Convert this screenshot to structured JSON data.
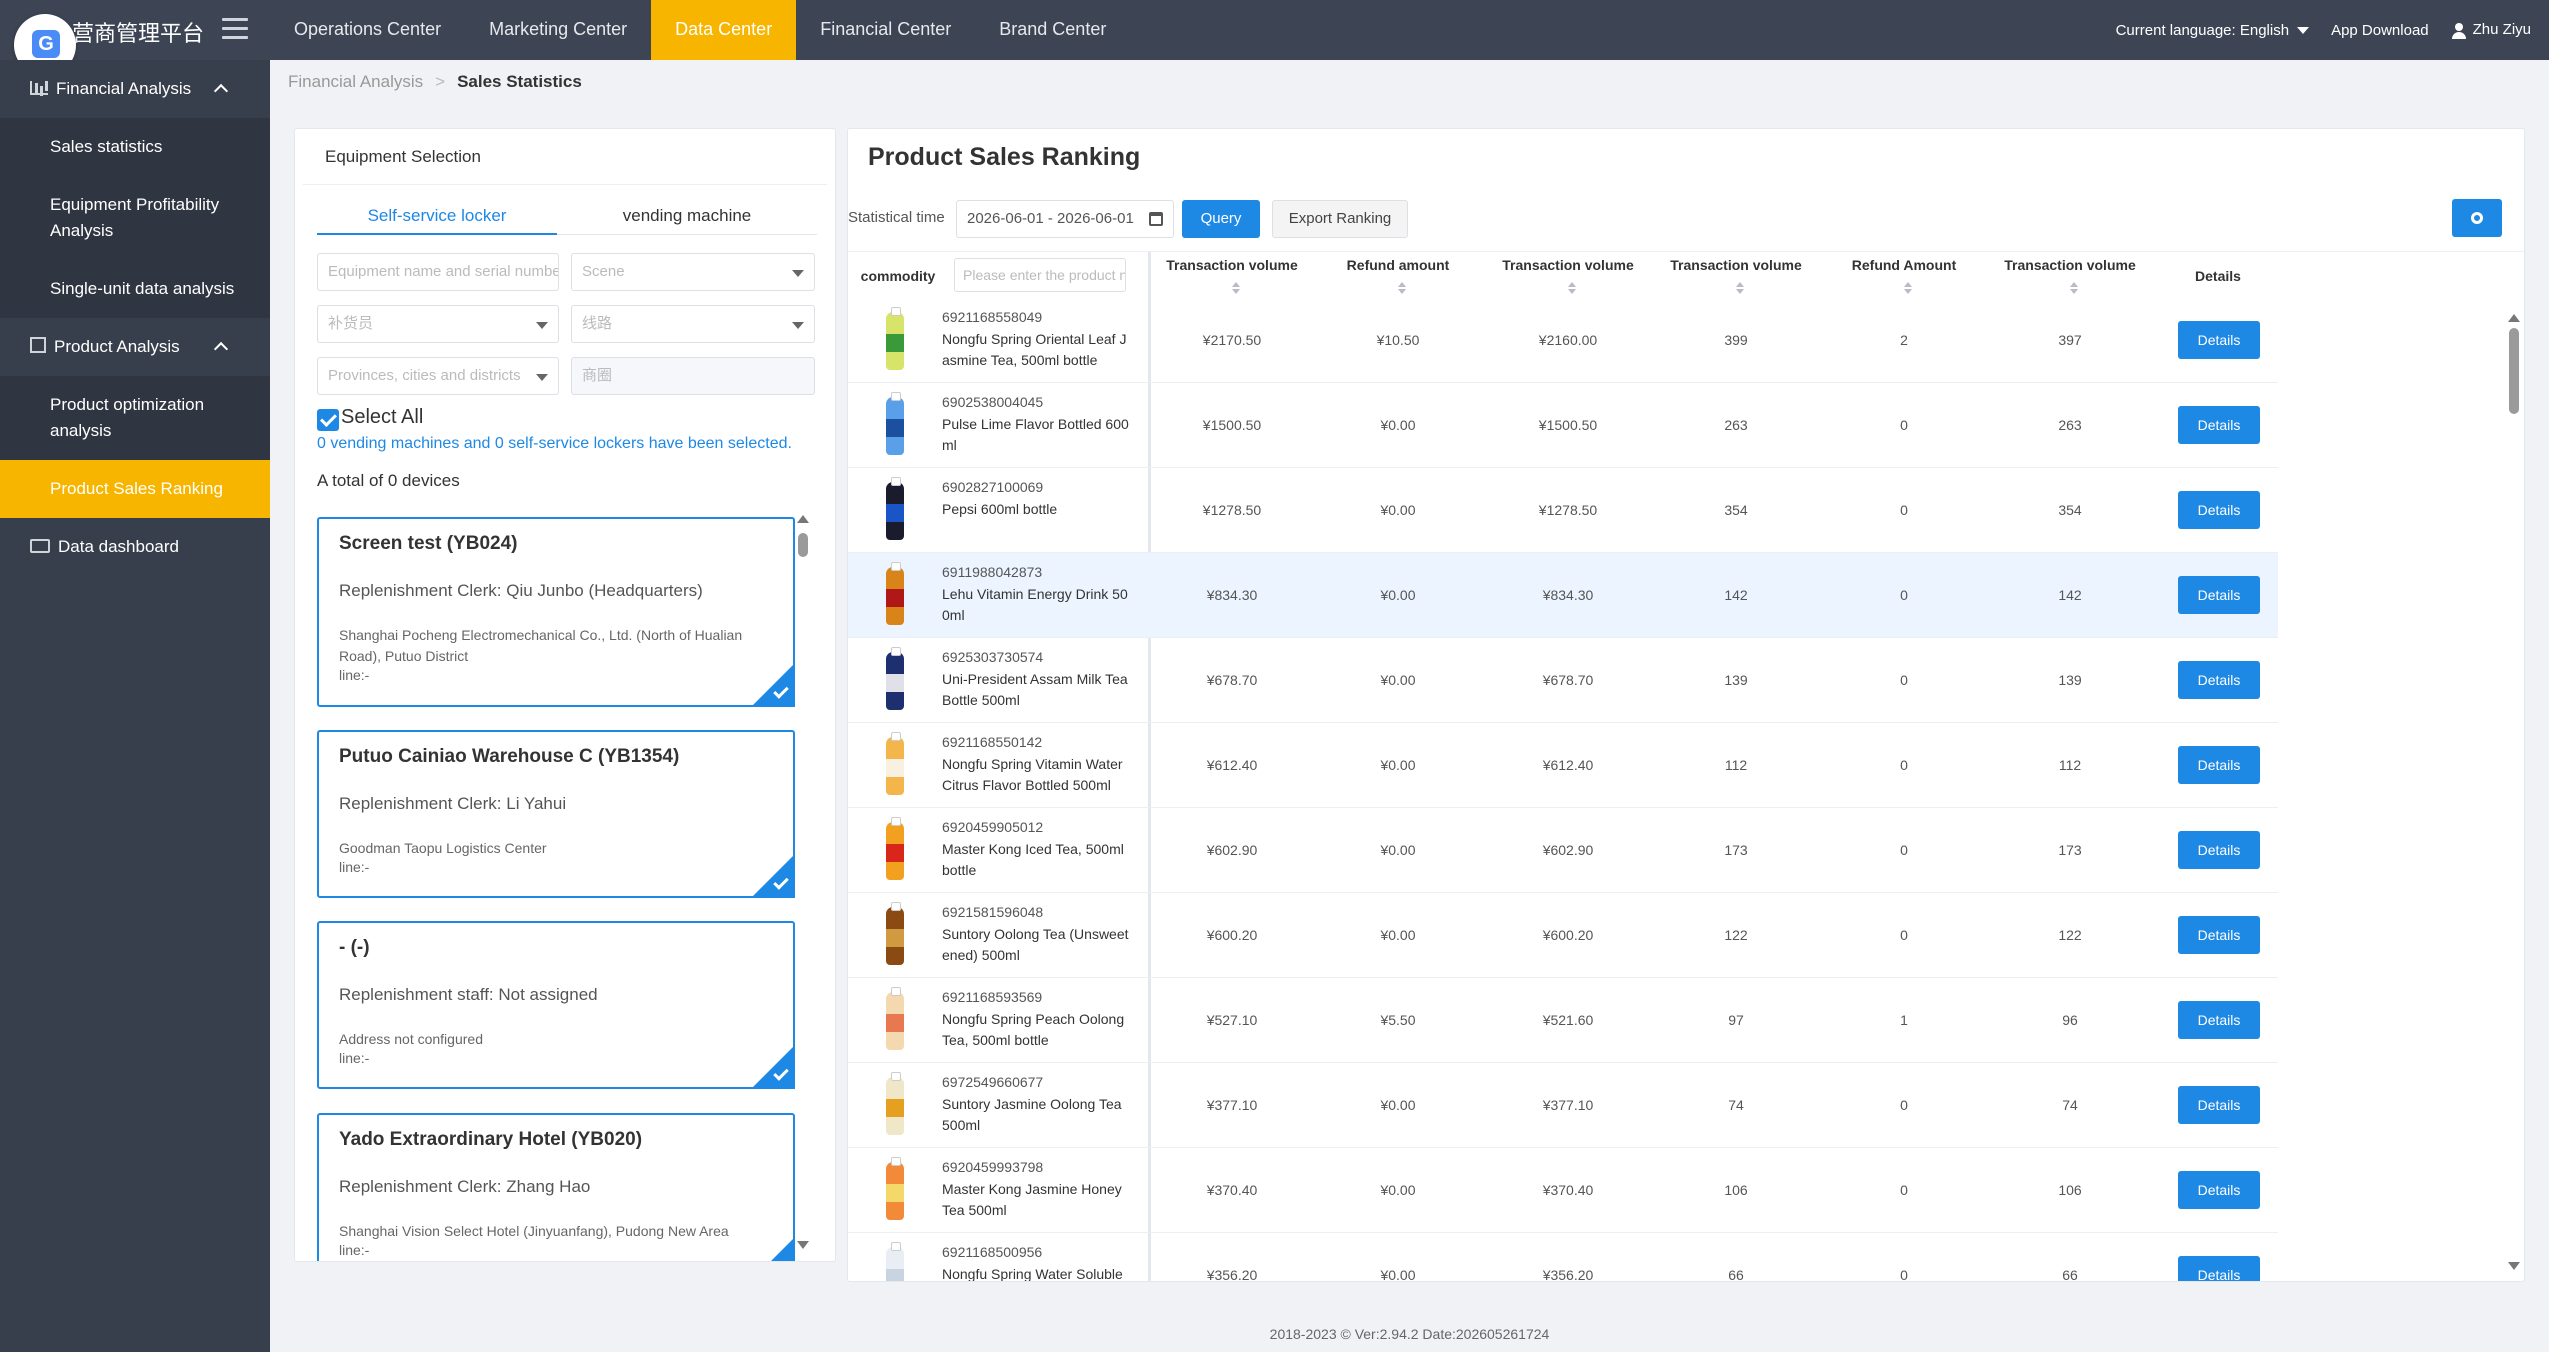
{
  "header": {
    "logo_text": "营商管理平台",
    "nav": [
      "Operations Center",
      "Marketing Center",
      "Data Center",
      "Financial Center",
      "Brand Center"
    ],
    "active_nav": "Data Center",
    "language_label": "Current language:",
    "language_value": "English",
    "app_download": "App Download",
    "user_name": "Zhu Ziyu"
  },
  "sidebar": {
    "groups": [
      {
        "label": "Financial Analysis",
        "icon": "bar-chart-icon",
        "items": [
          "Sales statistics",
          "Equipment Profitability Analysis",
          "Single-unit data analysis"
        ]
      },
      {
        "label": "Product Analysis",
        "icon": "edit-icon",
        "items": [
          "Product optimization analysis",
          "Product Sales Ranking"
        ]
      },
      {
        "label": "Data dashboard",
        "icon": "monitor-icon",
        "items": []
      }
    ],
    "active_item": "Product Sales Ranking"
  },
  "breadcrumb": {
    "parent": "Financial Analysis",
    "separator": ">",
    "current": "Sales Statistics"
  },
  "equipment": {
    "title": "Equipment Selection",
    "tabs": [
      "Self-service locker",
      "vending machine"
    ],
    "filters": {
      "name_placeholder": "Equipment name and serial number",
      "scene_placeholder": "Scene",
      "clerk_placeholder": "补货员",
      "route_placeholder": "线路",
      "region_placeholder": "Provinces, cities and districts",
      "mall_placeholder": "商圈"
    },
    "select_all": "Select All",
    "selected_info": "0 vending machines and 0 self-service lockers have been selected.",
    "total": "A total of 0 devices",
    "cards": [
      {
        "title": "Screen test (YB024)",
        "clerk": "Replenishment Clerk: Qiu Junbo (Headquarters)",
        "address": "Shanghai Pocheng Electromechanical Co., Ltd. (North of Hualian Road), Putuo District",
        "line": "line:-"
      },
      {
        "title": "Putuo Cainiao Warehouse C (YB1354)",
        "clerk": "Replenishment Clerk: Li Yahui",
        "address": "Goodman Taopu Logistics Center",
        "line": "line:-"
      },
      {
        "title": "- (-)",
        "clerk": "Replenishment staff: Not assigned",
        "address": "Address not configured",
        "line": "line:-"
      },
      {
        "title": "Yado Extraordinary Hotel (YB020)",
        "clerk": "Replenishment Clerk: Zhang Hao",
        "address": "Shanghai Vision Select Hotel (Jinyuanfang), Pudong New Area",
        "line": "line:-"
      }
    ]
  },
  "ranking": {
    "title": "Product Sales Ranking",
    "time_label": "Statistical time",
    "date_range": "2026-06-01 - 2026-06-01",
    "query_label": "Query",
    "export_label": "Export Ranking",
    "columns": {
      "commodity": "commodity",
      "search_placeholder": "Please enter the product name",
      "tx1": "Transaction volume",
      "refund": "Refund amount",
      "tx2": "Transaction volume",
      "tx3": "Transaction volume",
      "refund2": "Refund Amount",
      "tx4": "Transaction volume",
      "details": "Details"
    },
    "details_label": "Details",
    "rows": [
      {
        "code": "6921168558049",
        "name": "Nongfu Spring Oriental Leaf Jasmine Tea, 500ml bottle",
        "c1": "¥2170.50",
        "c2": "¥10.50",
        "c3": "¥2160.00",
        "c4": "399",
        "c5": "2",
        "c6": "397",
        "bottle": "#d8e36a",
        "label": "#3a9a3a"
      },
      {
        "code": "6902538004045",
        "name": "Pulse Lime Flavor Bottled 600ml",
        "c1": "¥1500.50",
        "c2": "¥0.00",
        "c3": "¥1500.50",
        "c4": "263",
        "c5": "0",
        "c6": "263",
        "bottle": "#5aa0e8",
        "label": "#1b4fa0"
      },
      {
        "code": "6902827100069",
        "name": "Pepsi 600ml bottle",
        "c1": "¥1278.50",
        "c2": "¥0.00",
        "c3": "¥1278.50",
        "c4": "354",
        "c5": "0",
        "c6": "354",
        "bottle": "#1b1b2e",
        "label": "#1a55c8"
      },
      {
        "code": "6911988042873",
        "name": "Lehu Vitamin Energy Drink 500ml",
        "c1": "¥834.30",
        "c2": "¥0.00",
        "c3": "¥834.30",
        "c4": "142",
        "c5": "0",
        "c6": "142",
        "bottle": "#d88418",
        "label": "#b01818"
      },
      {
        "code": "6925303730574",
        "name": "Uni-President Assam Milk Tea Bottle 500ml",
        "c1": "¥678.70",
        "c2": "¥0.00",
        "c3": "¥678.70",
        "c4": "139",
        "c5": "0",
        "c6": "139",
        "bottle": "#1d2f6e",
        "label": "#e0e0e8"
      },
      {
        "code": "6921168550142",
        "name": "Nongfu Spring Vitamin Water Citrus Flavor Bottled 500ml",
        "c1": "¥612.40",
        "c2": "¥0.00",
        "c3": "¥612.40",
        "c4": "112",
        "c5": "0",
        "c6": "112",
        "bottle": "#f4b64a",
        "label": "#f8f0e0"
      },
      {
        "code": "6920459905012",
        "name": "Master Kong Iced Tea, 500ml bottle",
        "c1": "¥602.90",
        "c2": "¥0.00",
        "c3": "¥602.90",
        "c4": "173",
        "c5": "0",
        "c6": "173",
        "bottle": "#f2a020",
        "label": "#d8261a"
      },
      {
        "code": "6921581596048",
        "name": "Suntory Oolong Tea (Unsweetened) 500ml",
        "c1": "¥600.20",
        "c2": "¥0.00",
        "c3": "¥600.20",
        "c4": "122",
        "c5": "0",
        "c6": "122",
        "bottle": "#8a4a12",
        "label": "#d09a40"
      },
      {
        "code": "6921168593569",
        "name": "Nongfu Spring Peach Oolong Tea, 500ml bottle",
        "c1": "¥527.10",
        "c2": "¥5.50",
        "c3": "¥521.60",
        "c4": "97",
        "c5": "1",
        "c6": "96",
        "bottle": "#f4d8b0",
        "label": "#e87850"
      },
      {
        "code": "6972549660677",
        "name": "Suntory Jasmine Oolong Tea 500ml",
        "c1": "¥377.10",
        "c2": "¥0.00",
        "c3": "¥377.10",
        "c4": "74",
        "c5": "0",
        "c6": "74",
        "bottle": "#f0e6c8",
        "label": "#e6a020"
      },
      {
        "code": "6920459993798",
        "name": "Master Kong Jasmine Honey Tea 500ml",
        "c1": "¥370.40",
        "c2": "¥0.00",
        "c3": "¥370.40",
        "c4": "106",
        "c5": "0",
        "c6": "106",
        "bottle": "#f28a3a",
        "label": "#f4d86a"
      },
      {
        "code": "6921168500956",
        "name": "Nongfu Spring Water Soluble",
        "c1": "¥356.20",
        "c2": "¥0.00",
        "c3": "¥356.20",
        "c4": "66",
        "c5": "0",
        "c6": "66",
        "bottle": "#e8eef4",
        "label": "#c8d4e0"
      }
    ]
  },
  "footer": {
    "text": "2018-2023 © Ver:2.94.2 Date:202605261724"
  }
}
